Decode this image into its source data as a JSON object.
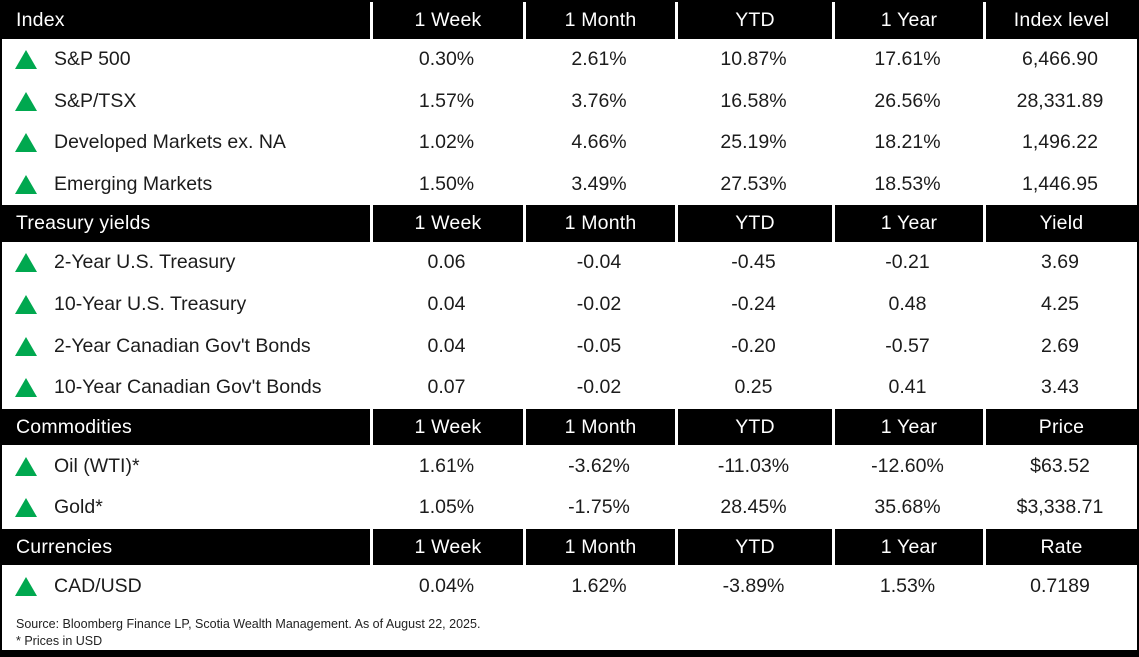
{
  "colors": {
    "accent_green": "#00a84f",
    "header_bg": "#000000",
    "header_text": "#ffffff",
    "body_text": "#1c1c1c"
  },
  "icons": {
    "up_triangle": {
      "name": "up-triangle-icon",
      "glyph": "▲",
      "color": "#00a84f"
    }
  },
  "chart_data": {
    "type": "table",
    "shared_columns": [
      "1 Week",
      "1 Month",
      "YTD",
      "1 Year"
    ],
    "sections": [
      {
        "label": "Index",
        "value_header": "Index level",
        "rows": [
          {
            "name": "S&P 500",
            "values": [
              "0.30%",
              "2.61%",
              "10.87%",
              "17.61%",
              "6,466.90"
            ]
          },
          {
            "name": "S&P/TSX",
            "values": [
              "1.57%",
              "3.76%",
              "16.58%",
              "26.56%",
              "28,331.89"
            ]
          },
          {
            "name": "Developed Markets ex. NA",
            "values": [
              "1.02%",
              "4.66%",
              "25.19%",
              "18.21%",
              "1,496.22"
            ]
          },
          {
            "name": "Emerging Markets",
            "values": [
              "1.50%",
              "3.49%",
              "27.53%",
              "18.53%",
              "1,446.95"
            ]
          }
        ]
      },
      {
        "label": "Treasury yields",
        "value_header": "Yield",
        "rows": [
          {
            "name": "2-Year U.S. Treasury",
            "values": [
              "0.06",
              "-0.04",
              "-0.45",
              "-0.21",
              "3.69"
            ]
          },
          {
            "name": "10-Year U.S. Treasury",
            "values": [
              "0.04",
              "-0.02",
              "-0.24",
              "0.48",
              "4.25"
            ]
          },
          {
            "name": "2-Year Canadian Gov't Bonds",
            "values": [
              "0.04",
              "-0.05",
              "-0.20",
              "-0.57",
              "2.69"
            ]
          },
          {
            "name": "10-Year Canadian Gov't Bonds",
            "values": [
              "0.07",
              "-0.02",
              "0.25",
              "0.41",
              "3.43"
            ]
          }
        ]
      },
      {
        "label": "Commodities",
        "value_header": "Price",
        "rows": [
          {
            "name": "Oil (WTI)*",
            "values": [
              "1.61%",
              "-3.62%",
              "-11.03%",
              "-12.60%",
              "$63.52"
            ]
          },
          {
            "name": "Gold*",
            "values": [
              "1.05%",
              "-1.75%",
              "28.45%",
              "35.68%",
              "$3,338.71"
            ]
          }
        ]
      },
      {
        "label": "Currencies",
        "value_header": "Rate",
        "rows": [
          {
            "name": "CAD/USD",
            "values": [
              "0.04%",
              "1.62%",
              "-3.89%",
              "1.53%",
              "0.7189"
            ]
          }
        ]
      }
    ]
  },
  "footer": {
    "source": "Source: Bloomberg Finance LP, Scotia Wealth Management. As of August 22, 2025.",
    "note": "* Prices in USD"
  }
}
